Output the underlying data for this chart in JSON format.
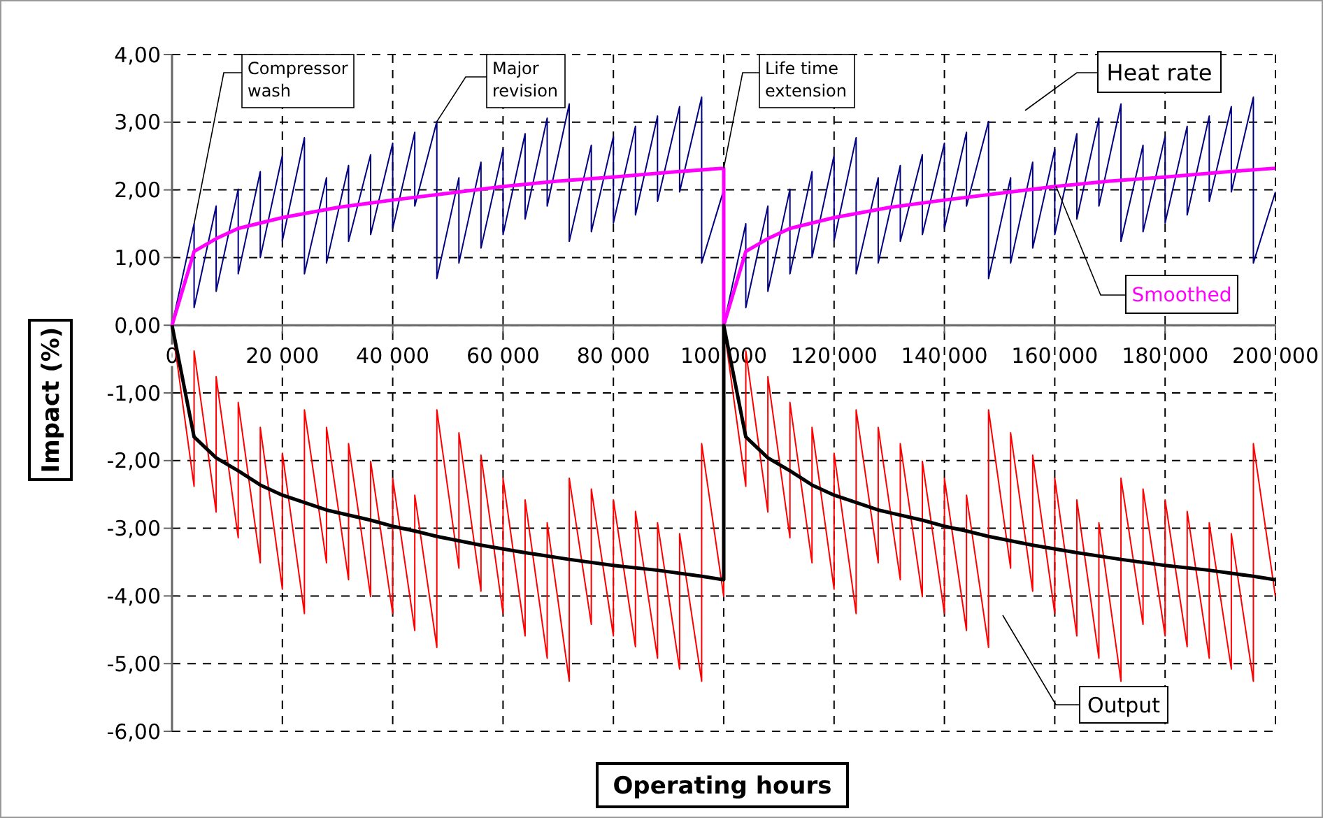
{
  "chart_data": {
    "type": "line",
    "xlabel": "Operating hours",
    "ylabel": "Impact (%)",
    "xlim": [
      0,
      200000
    ],
    "ylim": [
      -6,
      4
    ],
    "xticks": [
      0,
      {
        "value": 20000,
        "label": "20 000"
      },
      {
        "value": 40000,
        "label": "40 000"
      },
      {
        "value": 60000,
        "label": "60 000"
      },
      {
        "value": 80000,
        "label": "80 000"
      },
      {
        "value": 100000,
        "label": "100 000"
      },
      {
        "value": 120000,
        "label": "120 000"
      },
      {
        "value": 140000,
        "label": "140 000"
      },
      {
        "value": 160000,
        "label": "160 000"
      },
      {
        "value": 180000,
        "label": "180 000"
      },
      {
        "value": 200000,
        "label": "200 000"
      }
    ],
    "yticks": [
      {
        "value": 4,
        "label": "4,00"
      },
      {
        "value": 3,
        "label": "3,00"
      },
      {
        "value": 2,
        "label": "2,00"
      },
      {
        "value": 1,
        "label": "1,00"
      },
      {
        "value": 0,
        "label": "0,00"
      },
      {
        "value": -1,
        "label": "-1,00"
      },
      {
        "value": -2,
        "label": "-2,00"
      },
      {
        "value": -3,
        "label": "-3,00"
      },
      {
        "value": -4,
        "label": "-4,00"
      },
      {
        "value": -5,
        "label": "-5,00"
      },
      {
        "value": -6,
        "label": "-6,00"
      }
    ],
    "grid": true,
    "x": [
      0,
      4000,
      4000,
      8000,
      8000,
      12000,
      12000,
      16000,
      16000,
      20000,
      20000,
      24000,
      24000,
      28000,
      28000,
      32000,
      32000,
      36000,
      36000,
      40000,
      40000,
      44000,
      44000,
      48000,
      48000,
      52000,
      52000,
      56000,
      56000,
      60000,
      60000,
      64000,
      64000,
      68000,
      68000,
      72000,
      72000,
      76000,
      76000,
      80000,
      80000,
      84000,
      84000,
      88000,
      88000,
      92000,
      92000,
      96000,
      96000,
      100000,
      100000,
      104000,
      104000,
      108000,
      108000,
      112000,
      112000,
      116000,
      116000,
      120000,
      120000,
      124000,
      124000,
      128000,
      128000,
      132000,
      132000,
      136000,
      136000,
      140000,
      140000,
      144000,
      144000,
      148000,
      148000,
      152000,
      152000,
      156000,
      156000,
      160000,
      160000,
      164000,
      164000,
      168000,
      168000,
      172000,
      172000,
      176000,
      176000,
      180000,
      180000,
      184000,
      184000,
      188000,
      188000,
      192000,
      192000,
      196000,
      196000,
      200000
    ],
    "series": [
      {
        "name": "Heat rate",
        "color": "#000080",
        "values": [
          0,
          1.5,
          0.26,
          1.76,
          0.5,
          2.01,
          0.76,
          2.27,
          1.0,
          2.51,
          1.25,
          2.77,
          0.76,
          2.18,
          0.92,
          2.36,
          1.24,
          2.52,
          1.34,
          2.69,
          1.43,
          2.85,
          1.76,
          3.01,
          0.69,
          2.18,
          0.92,
          2.41,
          1.14,
          2.6,
          1.34,
          2.83,
          1.57,
          3.06,
          1.76,
          3.27,
          1.24,
          2.66,
          1.38,
          2.79,
          1.51,
          2.94,
          1.63,
          3.09,
          1.83,
          3.23,
          1.97,
          3.37,
          0.92,
          2.0,
          0,
          1.5,
          0.26,
          1.76,
          0.5,
          2.01,
          0.76,
          2.27,
          1.0,
          2.51,
          1.25,
          2.77,
          0.76,
          2.18,
          0.92,
          2.36,
          1.24,
          2.52,
          1.34,
          2.69,
          1.43,
          2.85,
          1.76,
          3.01,
          0.69,
          2.18,
          0.92,
          2.41,
          1.14,
          2.6,
          1.34,
          2.83,
          1.57,
          3.06,
          1.76,
          3.27,
          1.24,
          2.66,
          1.38,
          2.79,
          1.51,
          2.94,
          1.63,
          3.09,
          1.83,
          3.23,
          1.97,
          3.37,
          0.92,
          1.97
        ]
      },
      {
        "name": "Smoothed",
        "color": "#ff00ff",
        "x": [
          0,
          4000,
          8000,
          12000,
          20000,
          30000,
          40000,
          50000,
          60000,
          70000,
          80000,
          90000,
          100000,
          100000,
          104000,
          108000,
          112000,
          120000,
          130000,
          140000,
          150000,
          160000,
          170000,
          180000,
          190000,
          200000
        ],
        "values": [
          0,
          1.09,
          1.28,
          1.43,
          1.59,
          1.74,
          1.85,
          1.95,
          2.05,
          2.13,
          2.19,
          2.26,
          2.32,
          0,
          1.09,
          1.28,
          1.43,
          1.59,
          1.74,
          1.85,
          1.95,
          2.05,
          2.13,
          2.19,
          2.26,
          2.32
        ]
      },
      {
        "name": "Output",
        "color": "#ff0000",
        "values": [
          0,
          -2.38,
          -0.38,
          -2.76,
          -0.76,
          -3.14,
          -1.14,
          -3.51,
          -1.51,
          -3.9,
          -1.89,
          -4.26,
          -1.25,
          -3.51,
          -1.51,
          -3.76,
          -1.75,
          -4.01,
          -2.01,
          -4.26,
          -2.26,
          -4.51,
          -2.51,
          -4.76,
          -1.25,
          -3.59,
          -1.59,
          -3.93,
          -1.92,
          -4.26,
          -2.26,
          -4.59,
          -2.58,
          -4.92,
          -2.92,
          -5.26,
          -2.26,
          -4.42,
          -2.42,
          -4.59,
          -2.58,
          -4.75,
          -2.75,
          -4.92,
          -2.92,
          -5.08,
          -3.08,
          -5.26,
          -1.75,
          -4.01,
          0,
          -2.38,
          -0.38,
          -2.76,
          -0.76,
          -3.14,
          -1.14,
          -3.51,
          -1.51,
          -3.9,
          -1.89,
          -4.26,
          -1.25,
          -3.51,
          -1.51,
          -3.76,
          -1.75,
          -4.01,
          -2.01,
          -4.26,
          -2.26,
          -4.51,
          -2.51,
          -4.76,
          -1.25,
          -3.59,
          -1.59,
          -3.93,
          -1.92,
          -4.26,
          -2.26,
          -4.59,
          -2.58,
          -4.92,
          -2.92,
          -5.26,
          -2.26,
          -4.42,
          -2.42,
          -4.59,
          -2.58,
          -4.75,
          -2.75,
          -4.92,
          -2.92,
          -5.08,
          -3.08,
          -5.26,
          -1.75,
          -4.01
        ]
      },
      {
        "color": "#000000",
        "x": [
          0,
          4000,
          8000,
          12000,
          16000,
          20000,
          28000,
          36000,
          40000,
          44000,
          48000,
          56000,
          64000,
          72000,
          80000,
          88000,
          96000,
          100000,
          100000,
          104000,
          108000,
          112000,
          116000,
          120000,
          128000,
          136000,
          140000,
          144000,
          148000,
          156000,
          164000,
          172000,
          180000,
          188000,
          196000,
          200000
        ],
        "values": [
          0,
          -1.65,
          -1.96,
          -2.15,
          -2.36,
          -2.51,
          -2.73,
          -2.88,
          -2.97,
          -3.04,
          -3.12,
          -3.25,
          -3.36,
          -3.46,
          -3.55,
          -3.62,
          -3.71,
          -3.76,
          0,
          -1.65,
          -1.96,
          -2.15,
          -2.36,
          -2.51,
          -2.73,
          -2.88,
          -2.97,
          -3.04,
          -3.12,
          -3.25,
          -3.36,
          -3.46,
          -3.55,
          -3.62,
          -3.71,
          -3.76
        ]
      }
    ],
    "annotations": [
      {
        "text": "Compressor wash",
        "x": 4000,
        "y": 1.5
      },
      {
        "text": "Major revision",
        "x": 48000,
        "y": 3.01
      },
      {
        "text": "Life time extension",
        "x": 100000,
        "y": 2.32
      }
    ]
  }
}
